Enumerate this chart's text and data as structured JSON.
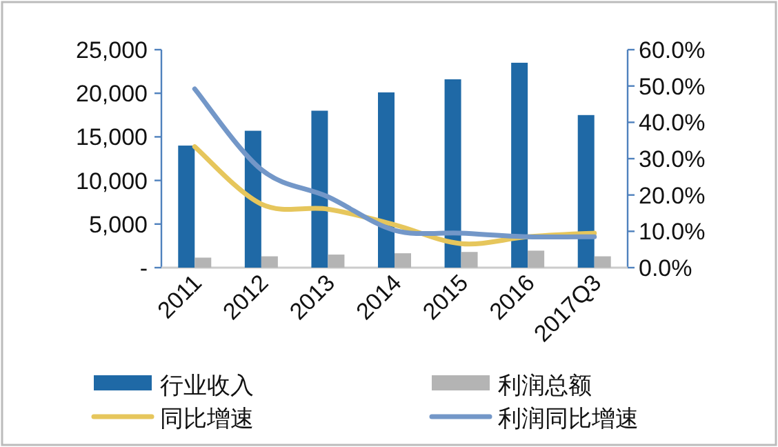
{
  "chart_data": {
    "type": "bar",
    "categories": [
      "2011",
      "2012",
      "2013",
      "2014",
      "2015",
      "2016",
      "2017Q3"
    ],
    "series": [
      {
        "name": "行业收入",
        "color": "#1f69a6",
        "values": [
          14000,
          15700,
          18000,
          20100,
          21600,
          23500,
          17500
        ]
      },
      {
        "name": "利润总额",
        "color": "#b4b4b4",
        "values": [
          1150,
          1300,
          1500,
          1650,
          1800,
          1950,
          1300
        ]
      },
      {
        "name": "同比增速",
        "type": "line",
        "axis": "y2",
        "color": "#e6c65c",
        "values": [
          33.3,
          17.5,
          16.1,
          11.8,
          6.6,
          8.5,
          9.5
        ]
      },
      {
        "name": "利润同比增速",
        "type": "line",
        "axis": "y2",
        "color": "#7397c8",
        "values": [
          49.2,
          27,
          19.5,
          10.3,
          9.5,
          8.5,
          8.5
        ]
      }
    ],
    "ylim": [
      0,
      25000
    ],
    "yticks": [
      {
        "value": 0,
        "label": "-"
      },
      {
        "value": 5000,
        "label": "5,000"
      },
      {
        "value": 10000,
        "label": "10,000"
      },
      {
        "value": 15000,
        "label": "15,000"
      },
      {
        "value": 20000,
        "label": "20,000"
      },
      {
        "value": 25000,
        "label": "25,000"
      }
    ],
    "y2lim": [
      0,
      60
    ],
    "y2ticks": [
      {
        "value": 0,
        "label": "0.0%"
      },
      {
        "value": 10,
        "label": "10.0%"
      },
      {
        "value": 20,
        "label": "20.0%"
      },
      {
        "value": 30,
        "label": "30.0%"
      },
      {
        "value": 40,
        "label": "40.0%"
      },
      {
        "value": 50,
        "label": "50.0%"
      },
      {
        "value": 60,
        "label": "60.0%"
      }
    ],
    "legend": "bottom",
    "grid": false
  }
}
